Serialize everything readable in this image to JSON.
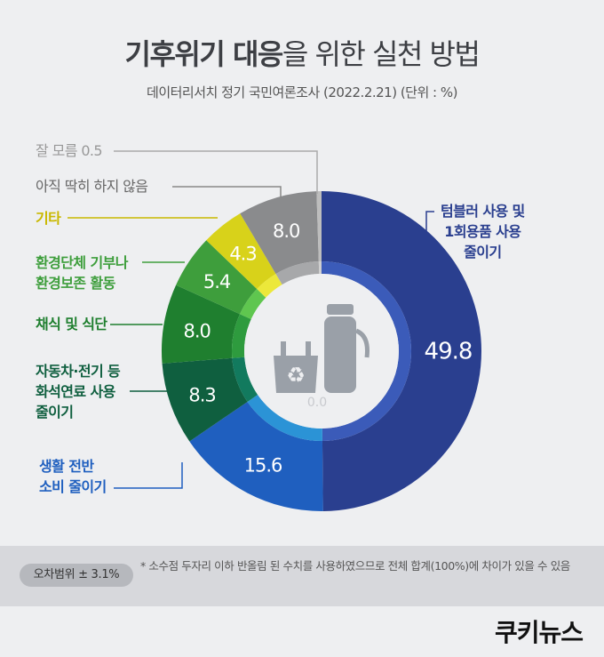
{
  "header": {
    "title_bold": "기후위기 대응",
    "title_rest": "을 위한 실천 방법",
    "subtitle": "데이터리서치 정기 국민여론조사 (2022.2.21)    (단위 : %)"
  },
  "chart_data": {
    "type": "pie",
    "title": "기후위기 대응을 위한 실천 방법",
    "unit": "%",
    "slices": [
      {
        "label": "텀블러 사용 및 1회용품 사용 줄이기",
        "value": 49.8,
        "color": "#2a3f8f",
        "inner": "#3b5bb9"
      },
      {
        "label": "생활 전반 소비 줄이기",
        "value": 15.6,
        "color": "#1f5fbf",
        "inner": "#2b93d6"
      },
      {
        "label": "자동차·전기 등 화석연료 사용 줄이기",
        "value": 8.3,
        "color": "#0f5f3f",
        "inner": "#127a5e"
      },
      {
        "label": "채식 및 식단",
        "value": 8.0,
        "color": "#1f7f2f",
        "inner": "#2e9b3e"
      },
      {
        "label": "환경단체 기부나 환경보존 활동",
        "value": 5.4,
        "color": "#3e9e3c",
        "inner": "#5fc64f"
      },
      {
        "label": "기타",
        "value": 4.3,
        "color": "#d8d21a",
        "inner": "#ece83a"
      },
      {
        "label": "아직 딱히 하지 않음",
        "value": 8.0,
        "color": "#8a8b8d",
        "inner": "#a7a8aa"
      },
      {
        "label": "잘 모름",
        "value": 0.5,
        "color": "#bdbdbd",
        "inner": "#cfcfcf"
      }
    ]
  },
  "labels": {
    "tumbler": [
      "텀블러 사용 및",
      "1회용품 사용",
      "줄이기"
    ],
    "consume": [
      "생활 전반",
      "소비 줄이기"
    ],
    "fossil": [
      "자동차·전기 등",
      "화석연료 사용",
      "줄이기"
    ],
    "diet": [
      "채식 및 식단"
    ],
    "donate": [
      "환경단체 기부나",
      "환경보존 활동"
    ],
    "etc": [
      "기타"
    ],
    "notyet": [
      "아직 딱히 하지 않음"
    ],
    "dunno": "잘 모름 0.5"
  },
  "center_icon_text": "0.0",
  "footer": {
    "badge": "오차범위 ± 3.1%",
    "note": "* 소수점 두자리 이하 반올림 된 수치를 사용하였으므로 전체 합계(100%)에 차이가 있을 수 있음"
  },
  "logo": "쿠키뉴스",
  "colors": {
    "background": "#eeeff1",
    "footer": "#d7d8dc"
  }
}
